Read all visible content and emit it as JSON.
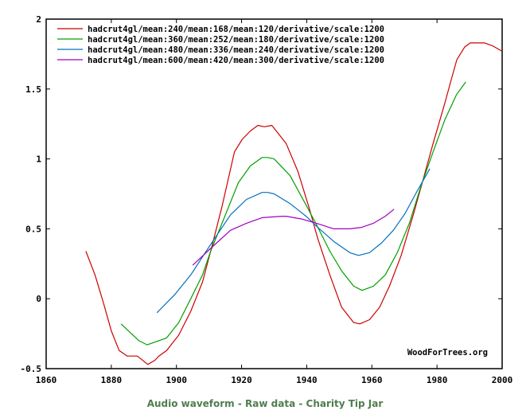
{
  "chart_data": {
    "type": "line",
    "title": "",
    "xlabel": "",
    "ylabel": "",
    "xlim": [
      1860,
      2000
    ],
    "ylim": [
      -0.5,
      2
    ],
    "x_ticks": [
      1860,
      1880,
      1900,
      1920,
      1940,
      1960,
      1980,
      2000
    ],
    "x_tick_labels": [
      "1860",
      "1880",
      "1900",
      "1920",
      "1940",
      "1960",
      "1980",
      "2000"
    ],
    "y_ticks": [
      -0.5,
      0,
      0.5,
      1,
      1.5,
      2
    ],
    "y_tick_labels": [
      "-0.5",
      "0",
      "0.5",
      "1",
      "1.5",
      "2"
    ],
    "grid": false,
    "legend_position": "top-left",
    "watermark": "WoodForTrees.org",
    "series": [
      {
        "name": "hadcrut4gl/mean:240/mean:168/mean:120/derivative/scale:1200",
        "color": "#cc0000",
        "points": [
          [
            1872.2,
            0.34
          ],
          [
            1875,
            0.17
          ],
          [
            1877.6,
            -0.03
          ],
          [
            1880,
            -0.23
          ],
          [
            1882.4,
            -0.37
          ],
          [
            1884.9,
            -0.41
          ],
          [
            1888,
            -0.41
          ],
          [
            1891.2,
            -0.47
          ],
          [
            1893.4,
            -0.44
          ],
          [
            1894.6,
            -0.41
          ],
          [
            1897,
            -0.37
          ],
          [
            1900.7,
            -0.26
          ],
          [
            1904.4,
            -0.09
          ],
          [
            1908,
            0.12
          ],
          [
            1910.5,
            0.34
          ],
          [
            1914,
            0.66
          ],
          [
            1917.8,
            1.05
          ],
          [
            1920.2,
            1.14
          ],
          [
            1922.7,
            1.2
          ],
          [
            1925,
            1.24
          ],
          [
            1927,
            1.23
          ],
          [
            1929.3,
            1.24
          ],
          [
            1933.7,
            1.11
          ],
          [
            1937.3,
            0.91
          ],
          [
            1941,
            0.63
          ],
          [
            1943.4,
            0.43
          ],
          [
            1947.1,
            0.17
          ],
          [
            1950.7,
            -0.06
          ],
          [
            1954.4,
            -0.17
          ],
          [
            1956.3,
            -0.18
          ],
          [
            1959.3,
            -0.15
          ],
          [
            1962.4,
            -0.06
          ],
          [
            1965.4,
            0.09
          ],
          [
            1969,
            0.31
          ],
          [
            1972.7,
            0.6
          ],
          [
            1975.6,
            0.84
          ],
          [
            1978.8,
            1.11
          ],
          [
            1982.4,
            1.4
          ],
          [
            1984.4,
            1.57
          ],
          [
            1986.1,
            1.71
          ],
          [
            1988.5,
            1.8
          ],
          [
            1990.2,
            1.83
          ],
          [
            1992.2,
            1.83
          ],
          [
            1994.6,
            1.83
          ],
          [
            1997,
            1.81
          ],
          [
            2000,
            1.77
          ]
        ]
      },
      {
        "name": "hadcrut4gl/mean:360/mean:252/mean:180/derivative/scale:1200",
        "color": "#00a000",
        "points": [
          [
            1883,
            -0.18
          ],
          [
            1888.5,
            -0.3
          ],
          [
            1891,
            -0.33
          ],
          [
            1894.6,
            -0.3
          ],
          [
            1897,
            -0.28
          ],
          [
            1900.7,
            -0.17
          ],
          [
            1904.4,
            0.0
          ],
          [
            1908,
            0.17
          ],
          [
            1910.5,
            0.34
          ],
          [
            1914,
            0.54
          ],
          [
            1919,
            0.83
          ],
          [
            1922.7,
            0.95
          ],
          [
            1926.3,
            1.01
          ],
          [
            1928,
            1.01
          ],
          [
            1930,
            1.0
          ],
          [
            1934.9,
            0.88
          ],
          [
            1939.8,
            0.67
          ],
          [
            1943,
            0.53
          ],
          [
            1947.1,
            0.34
          ],
          [
            1950.7,
            0.2
          ],
          [
            1954.4,
            0.09
          ],
          [
            1957,
            0.06
          ],
          [
            1960.5,
            0.09
          ],
          [
            1964.1,
            0.17
          ],
          [
            1967.8,
            0.33
          ],
          [
            1971.5,
            0.54
          ],
          [
            1975,
            0.8
          ],
          [
            1978.8,
            1.05
          ],
          [
            1982.4,
            1.28
          ],
          [
            1986,
            1.46
          ],
          [
            1988.8,
            1.55
          ]
        ]
      },
      {
        "name": "hadcrut4gl/mean:480/mean:336/mean:240/derivative/scale:1200",
        "color": "#0070c0",
        "points": [
          [
            1894,
            -0.1
          ],
          [
            1899.5,
            0.03
          ],
          [
            1904.4,
            0.17
          ],
          [
            1908,
            0.3
          ],
          [
            1911.7,
            0.43
          ],
          [
            1916.6,
            0.6
          ],
          [
            1921.5,
            0.71
          ],
          [
            1926.3,
            0.76
          ],
          [
            1928,
            0.76
          ],
          [
            1930,
            0.75
          ],
          [
            1934.9,
            0.68
          ],
          [
            1939.8,
            0.59
          ],
          [
            1943.4,
            0.51
          ],
          [
            1948.3,
            0.41
          ],
          [
            1953.2,
            0.33
          ],
          [
            1955.9,
            0.31
          ],
          [
            1959.3,
            0.33
          ],
          [
            1963,
            0.4
          ],
          [
            1966.6,
            0.49
          ],
          [
            1970.2,
            0.61
          ],
          [
            1973.9,
            0.77
          ],
          [
            1977.8,
            0.93
          ]
        ]
      },
      {
        "name": "hadcrut4gl/mean:600/mean:420/mean:300/derivative/scale:1200",
        "color": "#a000c0",
        "points": [
          [
            1905,
            0.24
          ],
          [
            1910.5,
            0.36
          ],
          [
            1916.6,
            0.49
          ],
          [
            1921.5,
            0.54
          ],
          [
            1926.3,
            0.58
          ],
          [
            1932.4,
            0.59
          ],
          [
            1933.7,
            0.59
          ],
          [
            1938.5,
            0.57
          ],
          [
            1943,
            0.54
          ],
          [
            1948.3,
            0.5
          ],
          [
            1950.7,
            0.5
          ],
          [
            1953.2,
            0.5
          ],
          [
            1956.8,
            0.51
          ],
          [
            1960.5,
            0.54
          ],
          [
            1964.1,
            0.59
          ],
          [
            1966.8,
            0.64
          ]
        ]
      }
    ]
  },
  "footer": {
    "links": [
      "Audio waveform",
      "Raw data",
      "Charity Tip Jar"
    ],
    "separator": " - "
  }
}
